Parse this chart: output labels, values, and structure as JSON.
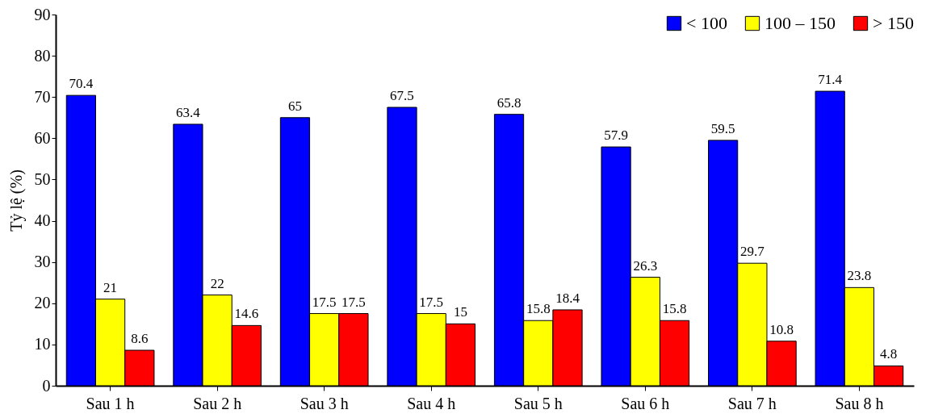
{
  "chart_data": {
    "type": "bar",
    "ylabel": "Tỷ lệ (%)",
    "categories": [
      "Sau 1 h",
      "Sau 2 h",
      "Sau 3 h",
      "Sau 4 h",
      "Sau 5 h",
      "Sau 6 h",
      "Sau 7 h",
      "Sau 8 h"
    ],
    "series": [
      {
        "name": "< 100",
        "color": "#0000ff",
        "values": [
          70.4,
          63.4,
          65,
          67.5,
          65.8,
          57.9,
          59.5,
          71.4
        ]
      },
      {
        "name": "100 – 150",
        "color": "#ffff00",
        "values": [
          21,
          22,
          17.5,
          17.5,
          15.8,
          26.3,
          29.7,
          23.8
        ]
      },
      {
        "name": "> 150",
        "color": "#ff0000",
        "values": [
          8.6,
          14.6,
          17.5,
          15,
          18.4,
          15.8,
          10.8,
          4.8
        ]
      }
    ],
    "ylim": [
      0,
      90
    ],
    "yticks": [
      0,
      10,
      20,
      30,
      40,
      50,
      60,
      70,
      80,
      90
    ],
    "grid": false,
    "legend": "top right",
    "data_labels": true
  }
}
